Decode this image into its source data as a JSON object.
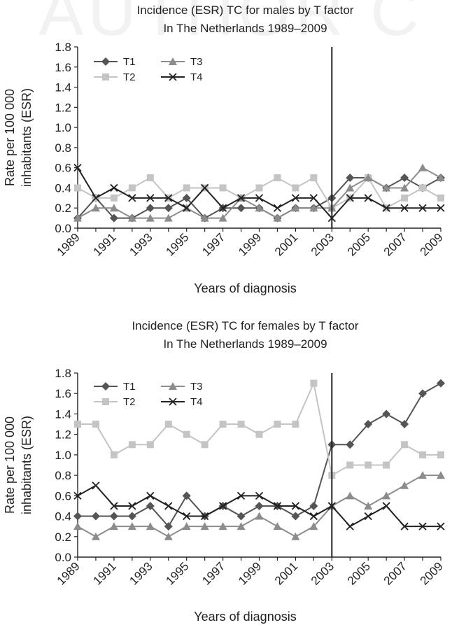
{
  "watermark": "AUTHOR C",
  "chart_data": [
    {
      "type": "line",
      "title": "Incidence (ESR) TC for males by T factor",
      "subtitle": "In The Netherlands 1989–2009",
      "xlabel": "Years of diagnosis",
      "ylabel": "Rate per 100 000 inhabitants (ESR)",
      "ylabel_lines": [
        "Rate per 100 000",
        "inhabitants (ESR)"
      ],
      "ylim": [
        0,
        1.8
      ],
      "yticks": [
        "0.0",
        "0.2",
        "0.4",
        "0.6",
        "0.8",
        "1.0",
        "1.2",
        "1.4",
        "1.6",
        "1.8"
      ],
      "x": [
        1989,
        1990,
        1991,
        1992,
        1993,
        1994,
        1995,
        1996,
        1997,
        1998,
        1999,
        2000,
        2001,
        2002,
        2003,
        2004,
        2005,
        2006,
        2007,
        2008,
        2009
      ],
      "xticks": [
        "1989",
        "1991",
        "1993",
        "1995",
        "1997",
        "1999",
        "2001",
        "2003",
        "2005",
        "2007",
        "2009"
      ],
      "vline": 2003,
      "legend_position": "top-left",
      "series": [
        {
          "name": "T1",
          "marker": "diamond",
          "color": "#555555",
          "values": [
            0.1,
            0.3,
            0.1,
            0.1,
            0.2,
            0.2,
            0.3,
            0.1,
            0.2,
            0.2,
            0.2,
            0.1,
            0.2,
            0.2,
            0.3,
            0.5,
            0.5,
            0.4,
            0.5,
            0.4,
            0.5
          ]
        },
        {
          "name": "T2",
          "marker": "square",
          "color": "#c4c4c4",
          "values": [
            0.4,
            0.3,
            0.3,
            0.4,
            0.5,
            0.3,
            0.4,
            0.4,
            0.4,
            0.3,
            0.4,
            0.5,
            0.4,
            0.5,
            0.2,
            0.3,
            0.5,
            0.2,
            0.3,
            0.4,
            0.3
          ]
        },
        {
          "name": "T3",
          "marker": "triangle",
          "color": "#8c8c8c",
          "values": [
            0.1,
            0.2,
            0.2,
            0.1,
            0.1,
            0.1,
            0.2,
            0.1,
            0.1,
            0.3,
            0.2,
            0.1,
            0.2,
            0.2,
            0.2,
            0.4,
            0.5,
            0.4,
            0.4,
            0.6,
            0.5
          ]
        },
        {
          "name": "T4",
          "marker": "x",
          "color": "#222222",
          "values": [
            0.6,
            0.3,
            0.4,
            0.3,
            0.3,
            0.3,
            0.2,
            0.4,
            0.2,
            0.3,
            0.3,
            0.2,
            0.3,
            0.3,
            0.1,
            0.3,
            0.3,
            0.2,
            0.2,
            0.2,
            0.2
          ]
        }
      ]
    },
    {
      "type": "line",
      "title": "Incidence (ESR) TC for females by T factor",
      "subtitle": "In The Netherlands 1989–2009",
      "xlabel": "Years of diagnosis",
      "ylabel": "Rate per 100 000 inhabitants (ESR)",
      "ylabel_lines": [
        "Rate per 100 000",
        "inhabitants (ESR)"
      ],
      "ylim": [
        0,
        1.8
      ],
      "yticks": [
        "0.0",
        "0.2",
        "0.4",
        "0.6",
        "0.8",
        "1.0",
        "1.2",
        "1.4",
        "1.6",
        "1.8"
      ],
      "x": [
        1989,
        1990,
        1991,
        1992,
        1993,
        1994,
        1995,
        1996,
        1997,
        1998,
        1999,
        2000,
        2001,
        2002,
        2003,
        2004,
        2005,
        2006,
        2007,
        2008,
        2009
      ],
      "xticks": [
        "1989",
        "1991",
        "1993",
        "1995",
        "1997",
        "1999",
        "2001",
        "2003",
        "2005",
        "2007",
        "2009"
      ],
      "vline": 2003,
      "legend_position": "top-left",
      "series": [
        {
          "name": "T1",
          "marker": "diamond",
          "color": "#555555",
          "values": [
            0.4,
            0.4,
            0.4,
            0.4,
            0.5,
            0.3,
            0.6,
            0.4,
            0.5,
            0.4,
            0.5,
            0.5,
            0.4,
            0.5,
            1.1,
            1.1,
            1.3,
            1.4,
            1.3,
            1.6,
            1.7
          ]
        },
        {
          "name": "T2",
          "marker": "square",
          "color": "#c4c4c4",
          "values": [
            1.3,
            1.3,
            1.0,
            1.1,
            1.1,
            1.3,
            1.2,
            1.1,
            1.3,
            1.3,
            1.2,
            1.3,
            1.3,
            1.7,
            0.8,
            0.9,
            0.9,
            0.9,
            1.1,
            1.0,
            1.0
          ]
        },
        {
          "name": "T3",
          "marker": "triangle",
          "color": "#8c8c8c",
          "values": [
            0.3,
            0.2,
            0.3,
            0.3,
            0.3,
            0.2,
            0.3,
            0.3,
            0.3,
            0.3,
            0.4,
            0.3,
            0.2,
            0.3,
            0.5,
            0.6,
            0.5,
            0.6,
            0.7,
            0.8,
            0.8
          ]
        },
        {
          "name": "T4",
          "marker": "x",
          "color": "#222222",
          "values": [
            0.6,
            0.7,
            0.5,
            0.5,
            0.6,
            0.5,
            0.4,
            0.4,
            0.5,
            0.6,
            0.6,
            0.5,
            0.5,
            0.4,
            0.5,
            0.3,
            0.4,
            0.5,
            0.3,
            0.3,
            0.3
          ]
        }
      ]
    }
  ]
}
